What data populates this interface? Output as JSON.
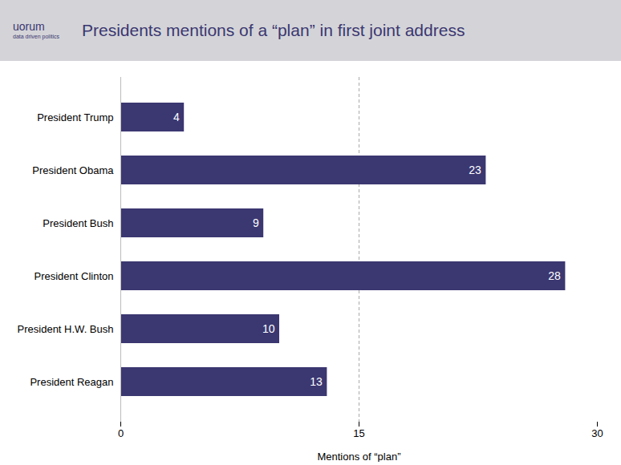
{
  "chart_data": {
    "type": "bar",
    "orientation": "horizontal",
    "title": "Presidents mentions of a “plan” in first joint address",
    "annotations": [
      "uorum",
      "data driven politics"
    ],
    "xlabel": "Mentions of “plan”",
    "categories": [
      "President Trump",
      "President Obama",
      "President Bush",
      "President Clinton",
      "President H.W. Bush",
      "President Reagan"
    ],
    "values": [
      4,
      23,
      9,
      28,
      10,
      13
    ],
    "color": "#3b3771",
    "xlim": [
      0,
      30
    ],
    "xticks": [
      0,
      15,
      30
    ],
    "reference_line": 15,
    "data_labels": true,
    "grid": false
  }
}
